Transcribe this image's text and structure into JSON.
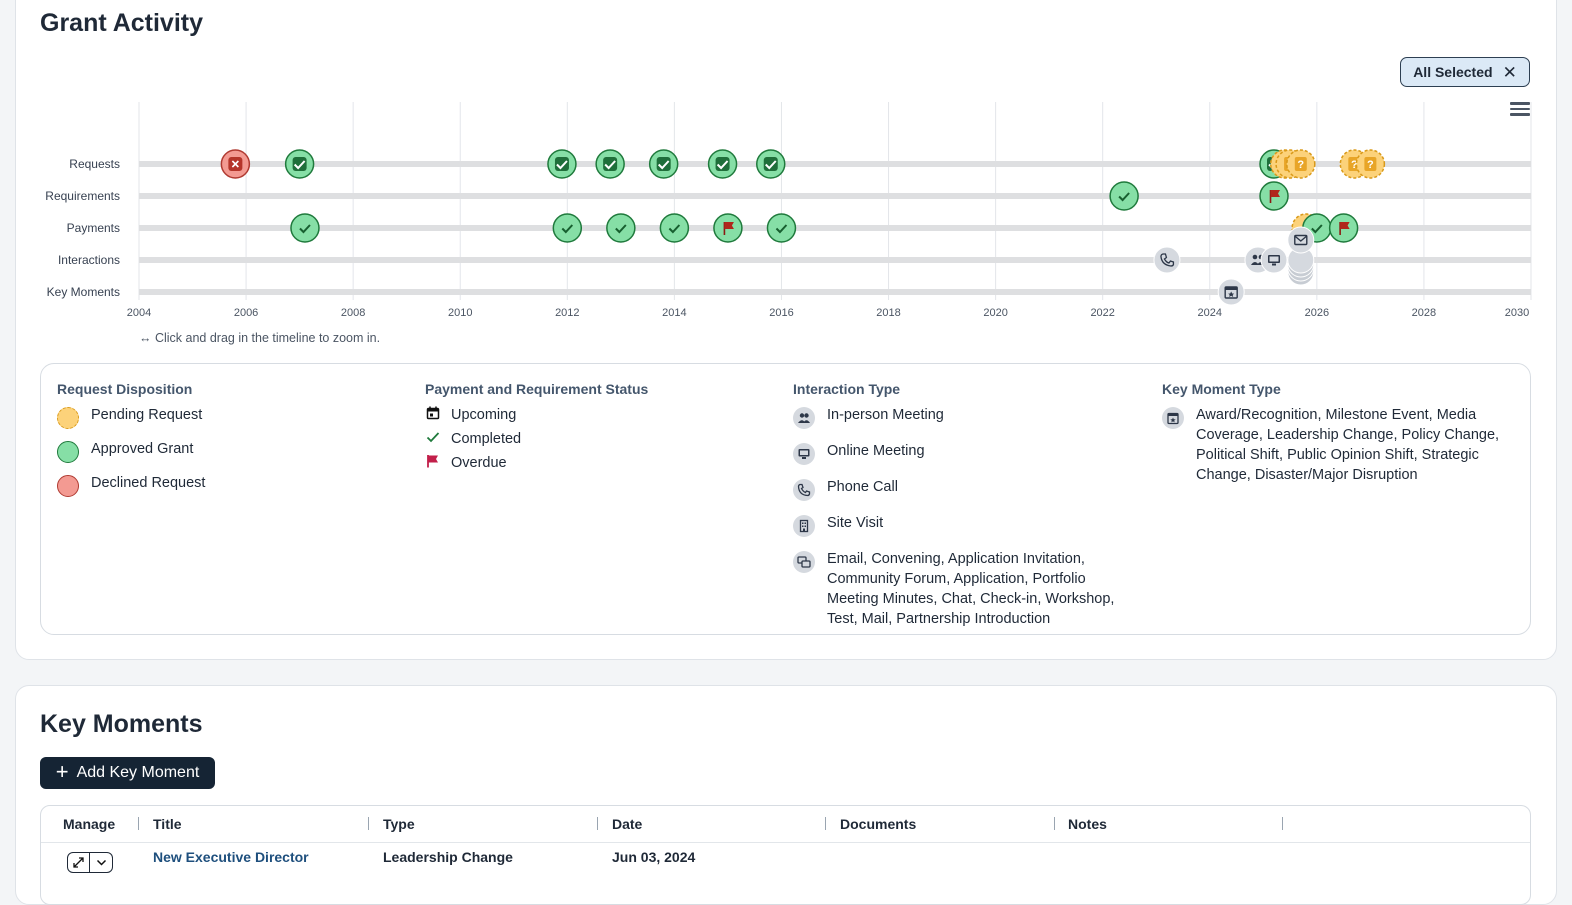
{
  "grant_activity": {
    "title": "Grant Activity",
    "filter_label": "All Selected",
    "zoom_hint": "↔ Click and drag in the timeline to zoom in.",
    "rows": [
      "Requests",
      "Requirements",
      "Payments",
      "Interactions",
      "Key Moments"
    ],
    "x_ticks": [
      "2004",
      "2006",
      "2008",
      "2010",
      "2012",
      "2014",
      "2016",
      "2018",
      "2020",
      "2022",
      "2024",
      "2026",
      "2028",
      "2030"
    ],
    "colors": {
      "approved": "#86dfa6",
      "approved_border": "#1f7a3c",
      "pending": "#fcd27a",
      "declined": "#f39a92",
      "overdue_flag": "#b0271c",
      "interaction_grey": "#d5d9df"
    }
  },
  "chart_data": {
    "type": "scatter",
    "x_range": [
      2004,
      2030
    ],
    "rows": [
      "Requests",
      "Requirements",
      "Payments",
      "Interactions",
      "Key Moments"
    ],
    "points": [
      {
        "row": "Requests",
        "x": 2005.8,
        "status": "declined"
      },
      {
        "row": "Requests",
        "x": 2007.0,
        "status": "approved"
      },
      {
        "row": "Requests",
        "x": 2011.9,
        "status": "approved"
      },
      {
        "row": "Requests",
        "x": 2012.8,
        "status": "approved"
      },
      {
        "row": "Requests",
        "x": 2013.8,
        "status": "approved"
      },
      {
        "row": "Requests",
        "x": 2014.9,
        "status": "approved"
      },
      {
        "row": "Requests",
        "x": 2015.8,
        "status": "approved"
      },
      {
        "row": "Requests",
        "x": 2025.2,
        "status": "approved"
      },
      {
        "row": "Requests",
        "x": 2025.4,
        "status": "pending"
      },
      {
        "row": "Requests",
        "x": 2025.5,
        "status": "pending"
      },
      {
        "row": "Requests",
        "x": 2025.7,
        "status": "pending"
      },
      {
        "row": "Requests",
        "x": 2026.7,
        "status": "pending"
      },
      {
        "row": "Requests",
        "x": 2027.0,
        "status": "pending"
      },
      {
        "row": "Requirements",
        "x": 2022.4,
        "status": "completed"
      },
      {
        "row": "Requirements",
        "x": 2025.2,
        "status": "overdue"
      },
      {
        "row": "Payments",
        "x": 2007.1,
        "status": "completed"
      },
      {
        "row": "Payments",
        "x": 2012.0,
        "status": "completed"
      },
      {
        "row": "Payments",
        "x": 2013.0,
        "status": "completed"
      },
      {
        "row": "Payments",
        "x": 2014.0,
        "status": "completed"
      },
      {
        "row": "Payments",
        "x": 2015.0,
        "status": "overdue"
      },
      {
        "row": "Payments",
        "x": 2016.0,
        "status": "completed"
      },
      {
        "row": "Payments",
        "x": 2025.8,
        "status": "upcoming"
      },
      {
        "row": "Payments",
        "x": 2026.0,
        "status": "completed"
      },
      {
        "row": "Payments",
        "x": 2026.5,
        "status": "overdue"
      },
      {
        "row": "Interactions",
        "x": 2023.2,
        "status": "phone"
      },
      {
        "row": "Interactions",
        "x": 2024.9,
        "status": "in-person"
      },
      {
        "row": "Interactions",
        "x": 2025.2,
        "status": "online"
      },
      {
        "row": "Interactions",
        "x": 2025.7,
        "status": "other"
      },
      {
        "row": "Interactions",
        "x": 2025.7,
        "status": "email"
      },
      {
        "row": "Key Moments",
        "x": 2024.4,
        "status": "key-moment"
      }
    ]
  },
  "legend": {
    "request_disposition": {
      "title": "Request Disposition",
      "items": [
        "Pending Request",
        "Approved Grant",
        "Declined Request"
      ]
    },
    "payment_status": {
      "title": "Payment and Requirement Status",
      "items": [
        "Upcoming",
        "Completed",
        "Overdue"
      ]
    },
    "interaction_type": {
      "title": "Interaction Type",
      "items": [
        "In-person Meeting",
        "Online Meeting",
        "Phone Call",
        "Site Visit",
        "Email, Convening, Application Invitation, Community Forum, Application, Portfolio Meeting Minutes, Chat, Check-in, Workshop, Test, Mail, Partnership Introduction"
      ]
    },
    "key_moment_type": {
      "title": "Key Moment Type",
      "items": [
        "Award/Recognition, Milestone Event, Media Coverage, Leadership Change, Policy Change, Political Shift, Public Opinion Shift, Strategic Change, Disaster/Major Disruption"
      ]
    }
  },
  "key_moments": {
    "title": "Key Moments",
    "add_button": "Add Key Moment",
    "columns": [
      "Manage",
      "Title",
      "Type",
      "Date",
      "Documents",
      "Notes"
    ],
    "rows": [
      {
        "title": "New Executive Director",
        "type": "Leadership Change",
        "date": "Jun 03, 2024",
        "documents": "",
        "notes": ""
      }
    ]
  }
}
